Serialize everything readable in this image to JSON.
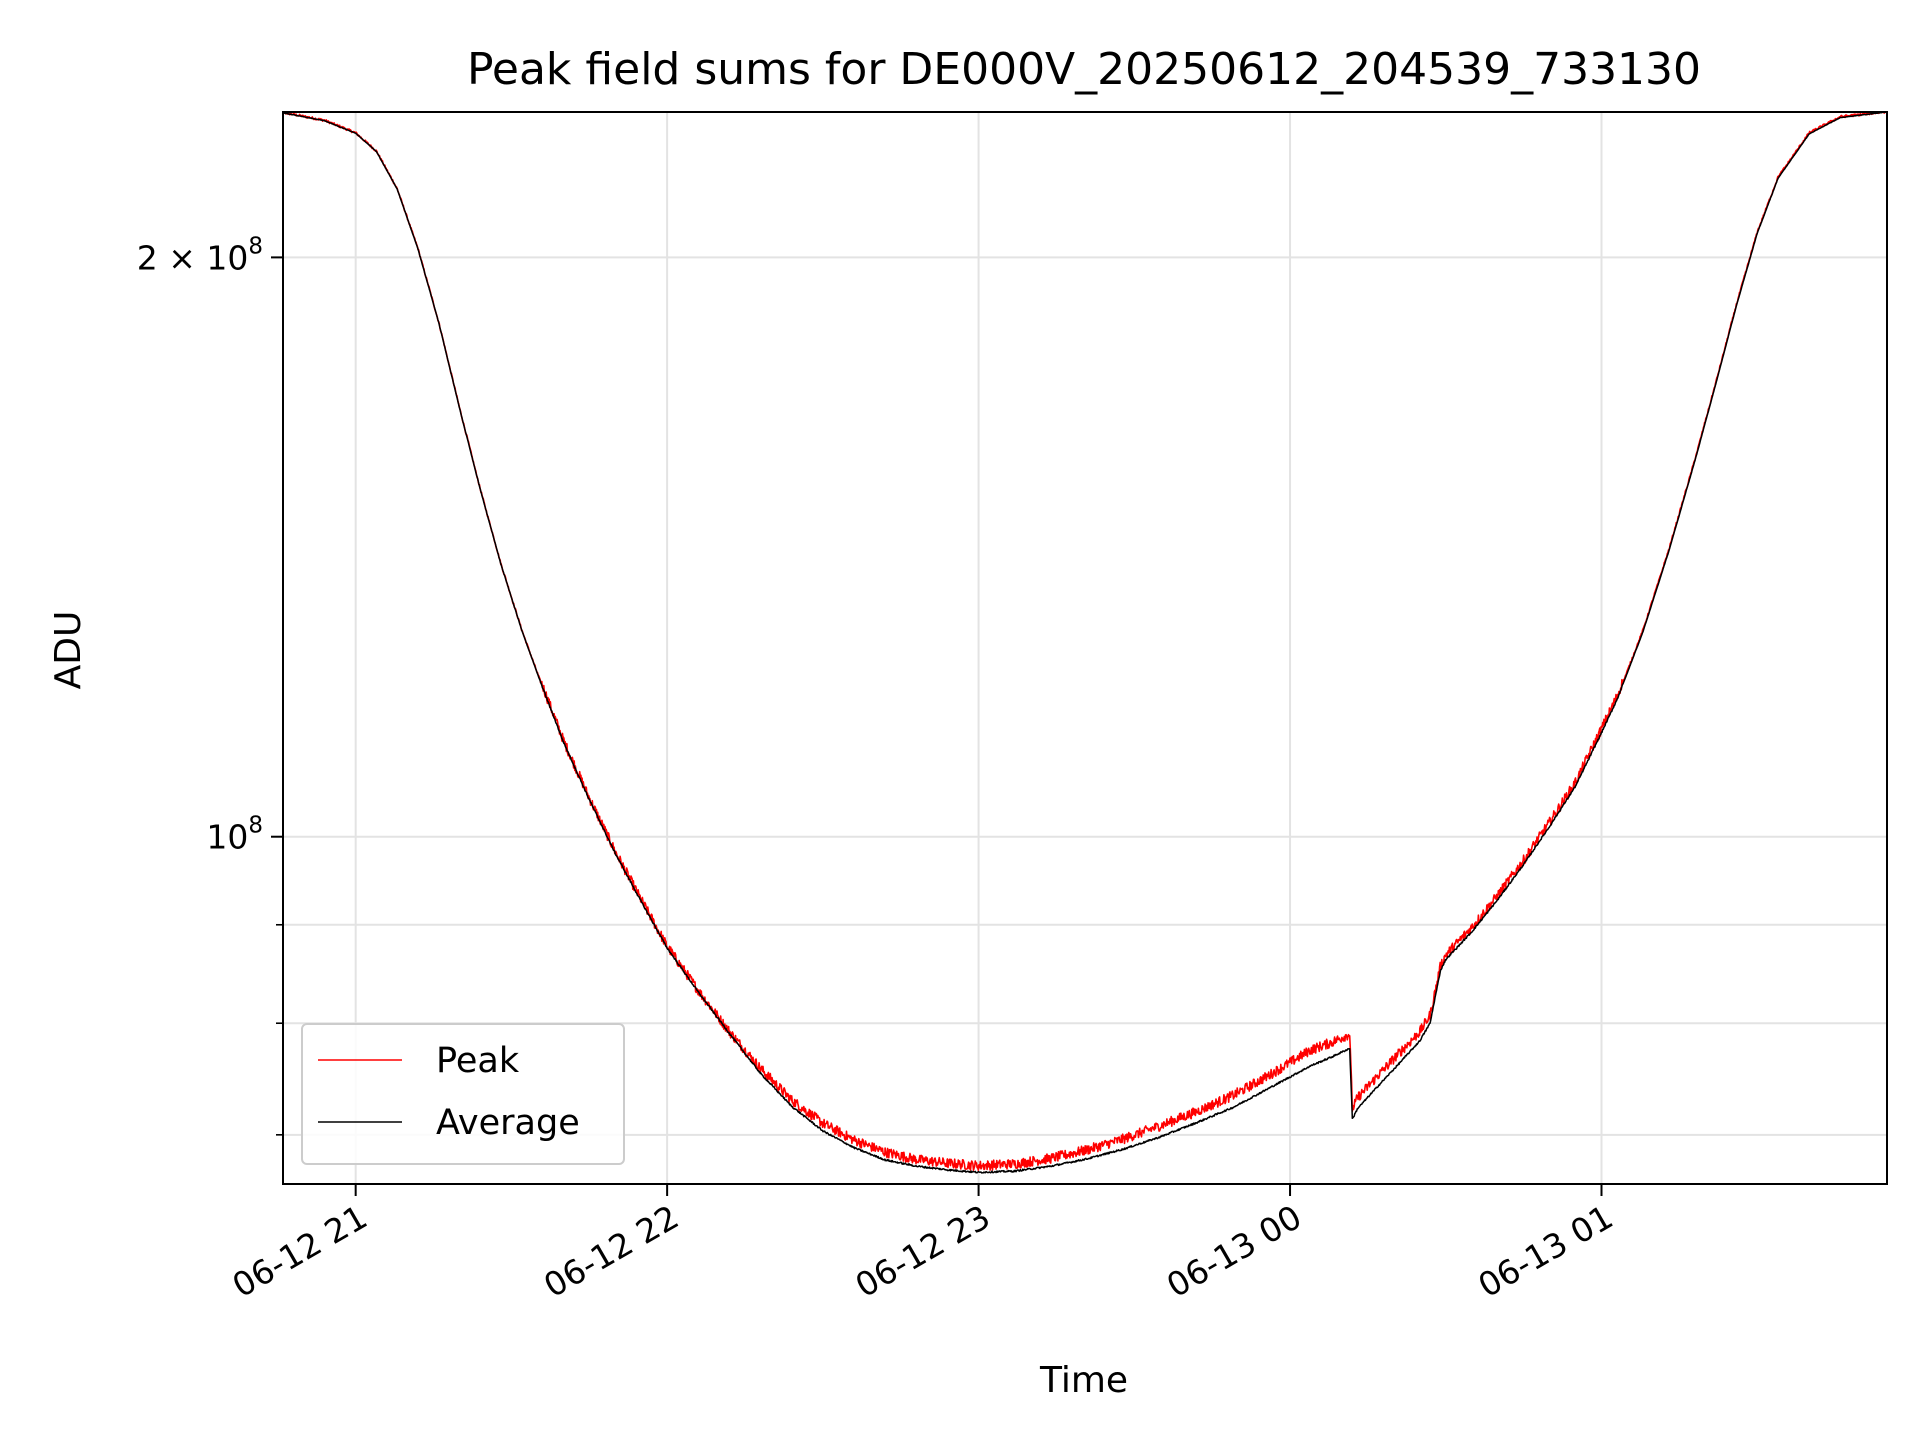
{
  "chart_data": {
    "type": "line",
    "title": "Peak field sums for DE000V_20250612_204539_733130",
    "xlabel": "Time",
    "ylabel": "ADU",
    "yscale": "log",
    "xlim": [
      "2025-06-12T20:46:00",
      "2025-06-13T01:55:00"
    ],
    "ylim": [
      66000000,
      238000000
    ],
    "grid": true,
    "legend_position": "lower-left",
    "x_ticks": [
      {
        "t": "2025-06-12T21:00:00",
        "label": "06-12 21"
      },
      {
        "t": "2025-06-12T22:00:00",
        "label": "06-12 22"
      },
      {
        "t": "2025-06-12T23:00:00",
        "label": "06-12 23"
      },
      {
        "t": "2025-06-13T00:00:00",
        "label": "06-13 00"
      },
      {
        "t": "2025-06-13T01:00:00",
        "label": "06-13 01"
      }
    ],
    "y_ticks": [
      {
        "v": 200000000,
        "base": "2 × 10",
        "exp": "8"
      },
      {
        "v": 100000000,
        "base": "10",
        "exp": "8"
      }
    ],
    "y_minor_ticks": [
      70000000,
      80000000,
      90000000
    ],
    "series": [
      {
        "name": "Peak",
        "color": "#ff0000",
        "x": [
          "2025-06-12T20:45:00",
          "2025-06-12T20:54:00",
          "2025-06-12T21:00:00",
          "2025-06-12T21:04:00",
          "2025-06-12T21:08:00",
          "2025-06-12T21:12:00",
          "2025-06-12T21:16:00",
          "2025-06-12T21:20:00",
          "2025-06-12T21:24:00",
          "2025-06-12T21:28:00",
          "2025-06-12T21:32:00",
          "2025-06-12T21:36:00",
          "2025-06-12T21:40:00",
          "2025-06-12T21:45:00",
          "2025-06-12T21:50:00",
          "2025-06-12T21:55:00",
          "2025-06-12T22:00:00",
          "2025-06-12T22:06:00",
          "2025-06-12T22:12:00",
          "2025-06-12T22:18:00",
          "2025-06-12T22:24:00",
          "2025-06-12T22:30:00",
          "2025-06-12T22:36:00",
          "2025-06-12T22:42:00",
          "2025-06-12T22:48:00",
          "2025-06-12T22:54:00",
          "2025-06-12T23:00:00",
          "2025-06-12T23:07:00",
          "2025-06-12T23:14:00",
          "2025-06-12T23:21:00",
          "2025-06-12T23:28:00",
          "2025-06-12T23:35:00",
          "2025-06-12T23:42:00",
          "2025-06-12T23:49:00",
          "2025-06-12T23:56:00",
          "2025-06-13T00:04:00",
          "2025-06-13T00:08:00",
          "2025-06-13T00:11:30",
          "2025-06-13T00:12:00",
          "2025-06-13T00:13:00",
          "2025-06-13T00:17:00",
          "2025-06-13T00:21:00",
          "2025-06-13T00:25:00",
          "2025-06-13T00:27:00",
          "2025-06-13T00:28:00",
          "2025-06-13T00:29:00",
          "2025-06-13T00:30:00",
          "2025-06-13T00:35:00",
          "2025-06-13T00:40:00",
          "2025-06-13T00:45:00",
          "2025-06-13T00:50:00",
          "2025-06-13T00:55:00",
          "2025-06-13T01:00:00",
          "2025-06-13T01:03:00",
          "2025-06-13T01:08:00",
          "2025-06-13T01:13:00",
          "2025-06-13T01:18:00",
          "2025-06-13T01:22:00",
          "2025-06-13T01:26:00",
          "2025-06-13T01:30:00",
          "2025-06-13T01:34:00",
          "2025-06-13T01:40:00",
          "2025-06-13T01:46:00",
          "2025-06-13T01:55:00"
        ],
        "y": [
          238000000,
          235500000,
          232000000,
          227000000,
          217000000,
          202000000,
          185000000,
          167000000,
          151500000,
          138500000,
          128000000,
          119500000,
          112000000,
          104500000,
          98000000,
          92500000,
          87500000,
          83000000,
          79000000,
          75600000,
          72800000,
          70800000,
          69400000,
          68400000,
          67800000,
          67500000,
          67300000,
          67450000,
          67900000,
          68600000,
          69500000,
          70600000,
          71800000,
          73200000,
          75000000,
          77300000,
          78000000,
          78800000,
          72000000,
          73000000,
          75000000,
          77000000,
          79000000,
          80600000,
          83000000,
          85500000,
          86600000,
          89500000,
          93000000,
          97000000,
          101500000,
          106500000,
          113500000,
          118000000,
          128000000,
          141000000,
          157000000,
          172000000,
          189000000,
          206000000,
          220000000,
          232000000,
          236500000,
          238000000
        ],
        "noise": 0.012
      },
      {
        "name": "Average",
        "color": "#000000",
        "x": [
          "2025-06-12T20:45:00",
          "2025-06-12T20:54:00",
          "2025-06-12T21:00:00",
          "2025-06-12T21:04:00",
          "2025-06-12T21:08:00",
          "2025-06-12T21:12:00",
          "2025-06-12T21:16:00",
          "2025-06-12T21:20:00",
          "2025-06-12T21:24:00",
          "2025-06-12T21:28:00",
          "2025-06-12T21:32:00",
          "2025-06-12T21:36:00",
          "2025-06-12T21:40:00",
          "2025-06-12T21:45:00",
          "2025-06-12T21:50:00",
          "2025-06-12T21:55:00",
          "2025-06-12T22:00:00",
          "2025-06-12T22:06:00",
          "2025-06-12T22:12:00",
          "2025-06-12T22:18:00",
          "2025-06-12T22:24:00",
          "2025-06-12T22:30:00",
          "2025-06-12T22:36:00",
          "2025-06-12T22:42:00",
          "2025-06-12T22:48:00",
          "2025-06-12T22:54:00",
          "2025-06-12T23:00:00",
          "2025-06-12T23:07:00",
          "2025-06-12T23:14:00",
          "2025-06-12T23:21:00",
          "2025-06-12T23:28:00",
          "2025-06-12T23:35:00",
          "2025-06-12T23:42:00",
          "2025-06-12T23:49:00",
          "2025-06-12T23:56:00",
          "2025-06-13T00:04:00",
          "2025-06-13T00:08:00",
          "2025-06-13T00:11:30",
          "2025-06-13T00:12:00",
          "2025-06-13T00:13:00",
          "2025-06-13T00:17:00",
          "2025-06-13T00:21:00",
          "2025-06-13T00:25:00",
          "2025-06-13T00:27:00",
          "2025-06-13T00:28:00",
          "2025-06-13T00:29:00",
          "2025-06-13T00:30:00",
          "2025-06-13T00:35:00",
          "2025-06-13T00:40:00",
          "2025-06-13T00:45:00",
          "2025-06-13T00:50:00",
          "2025-06-13T00:55:00",
          "2025-06-13T01:00:00",
          "2025-06-13T01:03:00",
          "2025-06-13T01:08:00",
          "2025-06-13T01:13:00",
          "2025-06-13T01:18:00",
          "2025-06-13T01:22:00",
          "2025-06-13T01:26:00",
          "2025-06-13T01:30:00",
          "2025-06-13T01:34:00",
          "2025-06-13T01:40:00",
          "2025-06-13T01:46:00",
          "2025-06-13T01:55:00"
        ],
        "y": [
          238000000,
          235500000,
          232000000,
          227000000,
          217000000,
          202000000,
          185000000,
          167000000,
          151500000,
          138500000,
          128000000,
          119500000,
          112000000,
          104500000,
          98000000,
          92500000,
          87500000,
          83000000,
          79000000,
          75300000,
          72400000,
          70300000,
          68900000,
          67900000,
          67400000,
          67100000,
          66900000,
          67000000,
          67400000,
          68000000,
          68800000,
          69800000,
          71000000,
          72300000,
          74000000,
          76000000,
          76800000,
          77600000,
          71300000,
          72200000,
          74200000,
          76200000,
          78300000,
          80000000,
          82600000,
          85200000,
          86300000,
          89200000,
          92700000,
          96700000,
          101200000,
          106200000,
          113200000,
          117800000,
          127800000,
          140800000,
          156800000,
          171800000,
          188800000,
          205800000,
          219800000,
          231800000,
          236400000,
          238000000
        ],
        "noise": 0.002
      }
    ]
  }
}
